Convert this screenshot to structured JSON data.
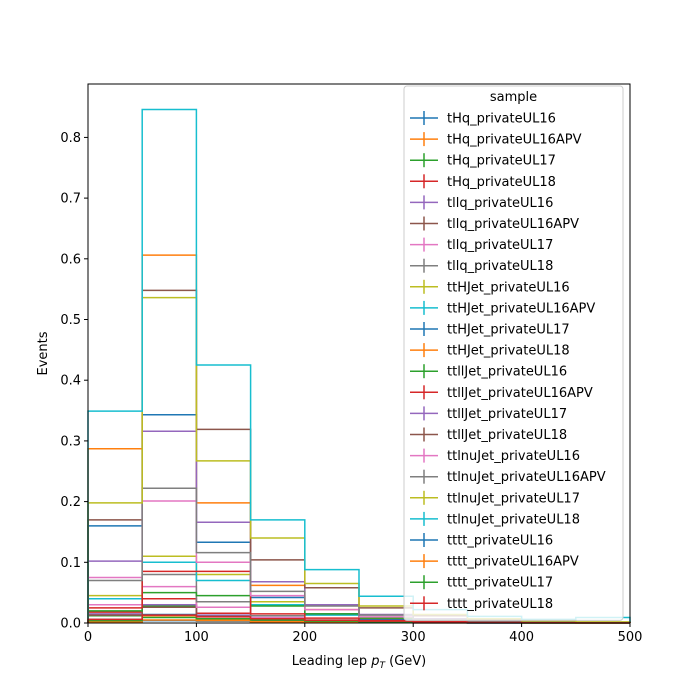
{
  "chart_data": {
    "type": "step",
    "xlabel_text": "Leading lep ",
    "xlabel_math_base": "p",
    "xlabel_math_sub": "T",
    "xlabel_unit": " (GeV)",
    "ylabel": "Events",
    "xlim": [
      0,
      500
    ],
    "ylim": [
      0,
      0.888
    ],
    "x_ticks": [
      "0",
      "100",
      "200",
      "300",
      "400",
      "500"
    ],
    "x_tick_values": [
      0,
      100,
      200,
      300,
      400,
      500
    ],
    "y_ticks": [
      "0.0",
      "0.1",
      "0.2",
      "0.3",
      "0.4",
      "0.5",
      "0.6",
      "0.7",
      "0.8"
    ],
    "y_tick_values": [
      0,
      0.1,
      0.2,
      0.3,
      0.4,
      0.5,
      0.6,
      0.7,
      0.8
    ],
    "bin_edges": [
      0,
      50,
      100,
      150,
      200,
      250,
      300,
      350,
      400,
      450,
      500
    ],
    "legend_title": "sample",
    "legend_position": "upper-right",
    "series": [
      {
        "name": "tHq_privateUL16",
        "color": "#1f77b4",
        "values": [
          0.006,
          0.014,
          0.006,
          0.002,
          0.001,
          0.0005,
          0.0003,
          0.0002,
          0.0001,
          0.0001
        ]
      },
      {
        "name": "tHq_privateUL16APV",
        "color": "#ff7f0e",
        "values": [
          0.005,
          0.012,
          0.005,
          0.002,
          0.001,
          0.0005,
          0.0003,
          0.0002,
          0.0001,
          0.0001
        ]
      },
      {
        "name": "tHq_privateUL17",
        "color": "#2ca02c",
        "values": [
          0.012,
          0.028,
          0.012,
          0.004,
          0.002,
          0.001,
          0.0005,
          0.0003,
          0.0002,
          0.0001
        ]
      },
      {
        "name": "tHq_privateUL18",
        "color": "#d62728",
        "values": [
          0.018,
          0.04,
          0.016,
          0.006,
          0.003,
          0.0015,
          0.0008,
          0.0004,
          0.0002,
          0.0001
        ]
      },
      {
        "name": "tllq_privateUL16",
        "color": "#9467bd",
        "values": [
          0.015,
          0.03,
          0.013,
          0.005,
          0.002,
          0.001,
          0.0005,
          0.0003,
          0.0002,
          0.0001
        ]
      },
      {
        "name": "tllq_privateUL16APV",
        "color": "#8c564b",
        "values": [
          0.013,
          0.026,
          0.011,
          0.004,
          0.002,
          0.001,
          0.0005,
          0.0003,
          0.0002,
          0.0001
        ]
      },
      {
        "name": "tllq_privateUL17",
        "color": "#e377c2",
        "values": [
          0.03,
          0.06,
          0.026,
          0.009,
          0.004,
          0.002,
          0.001,
          0.0005,
          0.0003,
          0.0001
        ]
      },
      {
        "name": "tllq_privateUL18",
        "color": "#7f7f7f",
        "values": [
          0.04,
          0.08,
          0.035,
          0.012,
          0.005,
          0.002,
          0.001,
          0.0006,
          0.0003,
          0.0002
        ]
      },
      {
        "name": "ttHJet_privateUL16",
        "color": "#bcbd22",
        "values": [
          0.045,
          0.11,
          0.08,
          0.035,
          0.015,
          0.006,
          0.003,
          0.0015,
          0.0008,
          0.0004
        ]
      },
      {
        "name": "ttHJet_privateUL16APV",
        "color": "#17becf",
        "values": [
          0.04,
          0.1,
          0.07,
          0.03,
          0.013,
          0.005,
          0.0025,
          0.0012,
          0.0006,
          0.0003
        ]
      },
      {
        "name": "ttHJet_privateUL17",
        "color": "#1f77b4",
        "values": [
          0.16,
          0.343,
          0.133,
          0.042,
          0.015,
          0.006,
          0.003,
          0.0015,
          0.0008,
          0.0004
        ]
      },
      {
        "name": "ttHJet_privateUL18",
        "color": "#ff7f0e",
        "values": [
          0.287,
          0.606,
          0.198,
          0.062,
          0.022,
          0.008,
          0.004,
          0.002,
          0.001,
          0.0005
        ]
      },
      {
        "name": "ttllJet_privateUL16",
        "color": "#2ca02c",
        "values": [
          0.02,
          0.05,
          0.045,
          0.028,
          0.015,
          0.008,
          0.004,
          0.002,
          0.001,
          0.0005
        ]
      },
      {
        "name": "ttllJet_privateUL16APV",
        "color": "#d62728",
        "values": [
          0.025,
          0.085,
          0.085,
          0.015,
          0.008,
          0.004,
          0.002,
          0.001,
          0.0005,
          0.0003
        ]
      },
      {
        "name": "ttllJet_privateUL17",
        "color": "#9467bd",
        "values": [
          0.102,
          0.316,
          0.166,
          0.068,
          0.03,
          0.014,
          0.007,
          0.003,
          0.0015,
          0.0008
        ]
      },
      {
        "name": "ttllJet_privateUL18",
        "color": "#8c564b",
        "values": [
          0.17,
          0.548,
          0.319,
          0.104,
          0.058,
          0.025,
          0.012,
          0.005,
          0.0025,
          0.0012
        ]
      },
      {
        "name": "ttlnuJet_privateUL16",
        "color": "#e377c2",
        "values": [
          0.075,
          0.201,
          0.1,
          0.045,
          0.022,
          0.01,
          0.005,
          0.0025,
          0.0012,
          0.0006
        ]
      },
      {
        "name": "ttlnuJet_privateUL16APV",
        "color": "#7f7f7f",
        "values": [
          0.07,
          0.222,
          0.116,
          0.052,
          0.028,
          0.013,
          0.006,
          0.003,
          0.0015,
          0.0008
        ]
      },
      {
        "name": "ttlnuJet_privateUL17",
        "color": "#bcbd22",
        "values": [
          0.198,
          0.536,
          0.267,
          0.14,
          0.065,
          0.028,
          0.014,
          0.007,
          0.0035,
          0.0018
        ]
      },
      {
        "name": "ttlnuJet_privateUL18",
        "color": "#17becf",
        "values": [
          0.349,
          0.846,
          0.425,
          0.17,
          0.088,
          0.044,
          0.022,
          0.011,
          0.006,
          0.009
        ]
      },
      {
        "name": "tttt_privateUL16",
        "color": "#1f77b4",
        "values": [
          0.002,
          0.004,
          0.003,
          0.002,
          0.001,
          0.0008,
          0.0005,
          0.0003,
          0.0002,
          0.0001
        ]
      },
      {
        "name": "tttt_privateUL16APV",
        "color": "#ff7f0e",
        "values": [
          0.002,
          0.005,
          0.004,
          0.002,
          0.0015,
          0.001,
          0.0006,
          0.0004,
          0.0002,
          0.0001
        ]
      },
      {
        "name": "tttt_privateUL17",
        "color": "#2ca02c",
        "values": [
          0.004,
          0.009,
          0.007,
          0.005,
          0.003,
          0.002,
          0.001,
          0.0006,
          0.0003,
          0.0002
        ]
      },
      {
        "name": "tttt_privateUL18",
        "color": "#d62728",
        "values": [
          0.006,
          0.013,
          0.01,
          0.007,
          0.0045,
          0.003,
          0.0015,
          0.0008,
          0.0004,
          0.0002
        ]
      }
    ]
  }
}
